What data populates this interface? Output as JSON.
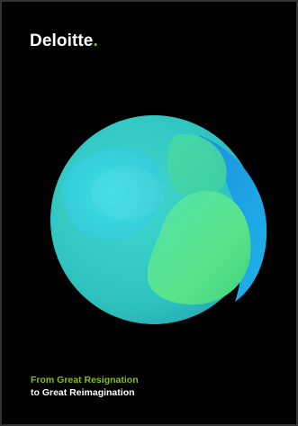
{
  "brand": {
    "name": "Deloitte",
    "dot": ".",
    "text_color": "#ffffff",
    "dot_color": "#86bc25"
  },
  "artwork": {
    "description_icon": "organic-sphere-graphic",
    "colors": [
      "#1fa6e6",
      "#3cd6c8",
      "#58e07a",
      "#2ab7d8"
    ]
  },
  "tagline": {
    "line1": "From Great Resignation",
    "line2": "to Great Reimagination",
    "line1_color": "#86bc25",
    "line2_color": "#ffffff"
  },
  "background_color": "#000000"
}
